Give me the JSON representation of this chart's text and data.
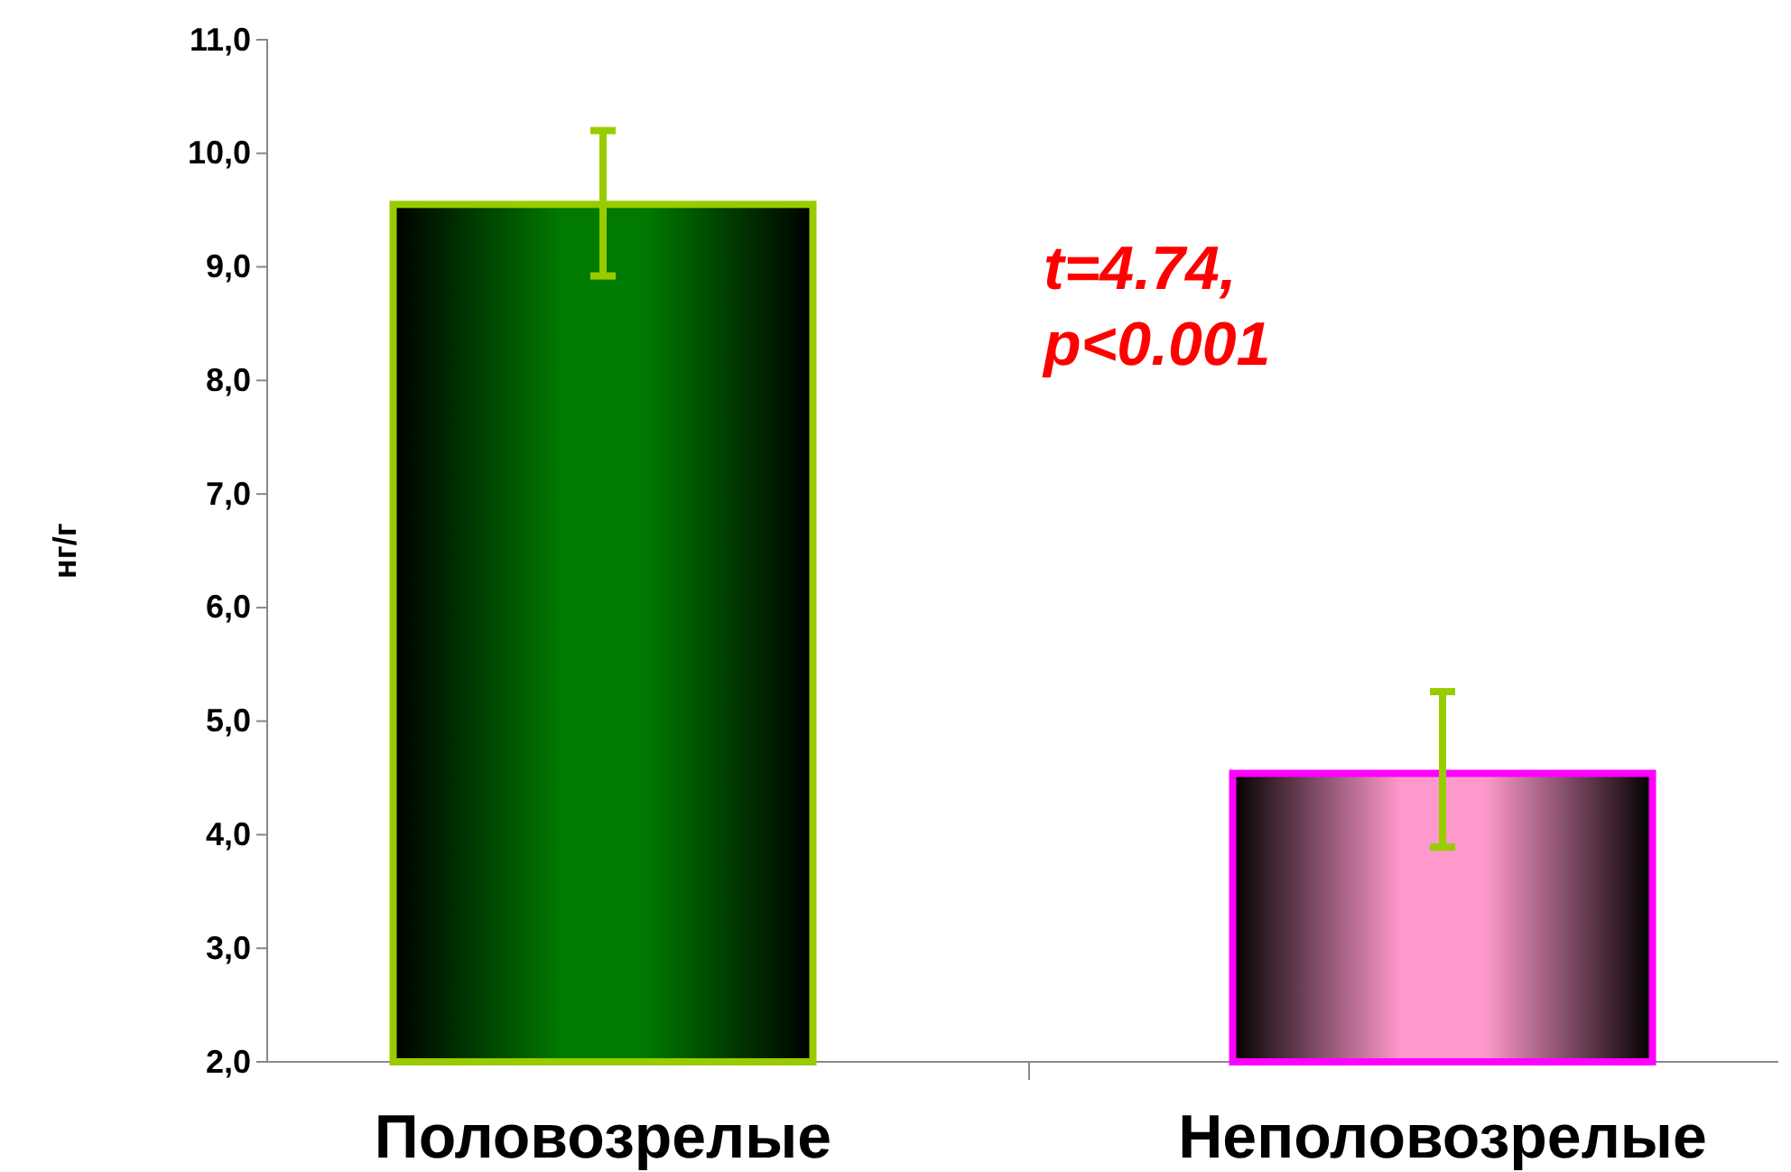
{
  "chart_data": {
    "type": "bar",
    "ylabel": "нг/г",
    "categories": [
      "Половозрелые",
      "Неполовозрелые"
    ],
    "values": [
      9.55,
      4.54
    ],
    "colors": [
      "#007a00",
      "#ff99cc"
    ],
    "errors": [
      [
        8.92,
        10.2
      ],
      [
        3.89,
        5.26
      ]
    ],
    "ylim": [
      2,
      11
    ],
    "yticks": [
      {
        "value": 2,
        "label": "2,0"
      },
      {
        "value": 3,
        "label": "3,0"
      },
      {
        "value": 4,
        "label": "4,0"
      },
      {
        "value": 5,
        "label": "5,0"
      },
      {
        "value": 6,
        "label": "6,0"
      },
      {
        "value": 7,
        "label": "7,0"
      },
      {
        "value": 8,
        "label": "8,0"
      },
      {
        "value": 9,
        "label": "9,0"
      },
      {
        "value": 10,
        "label": "10,0"
      },
      {
        "value": 11,
        "label": "11,0"
      }
    ],
    "annotations": [
      "t=4.74,\np<0.001"
    ]
  }
}
